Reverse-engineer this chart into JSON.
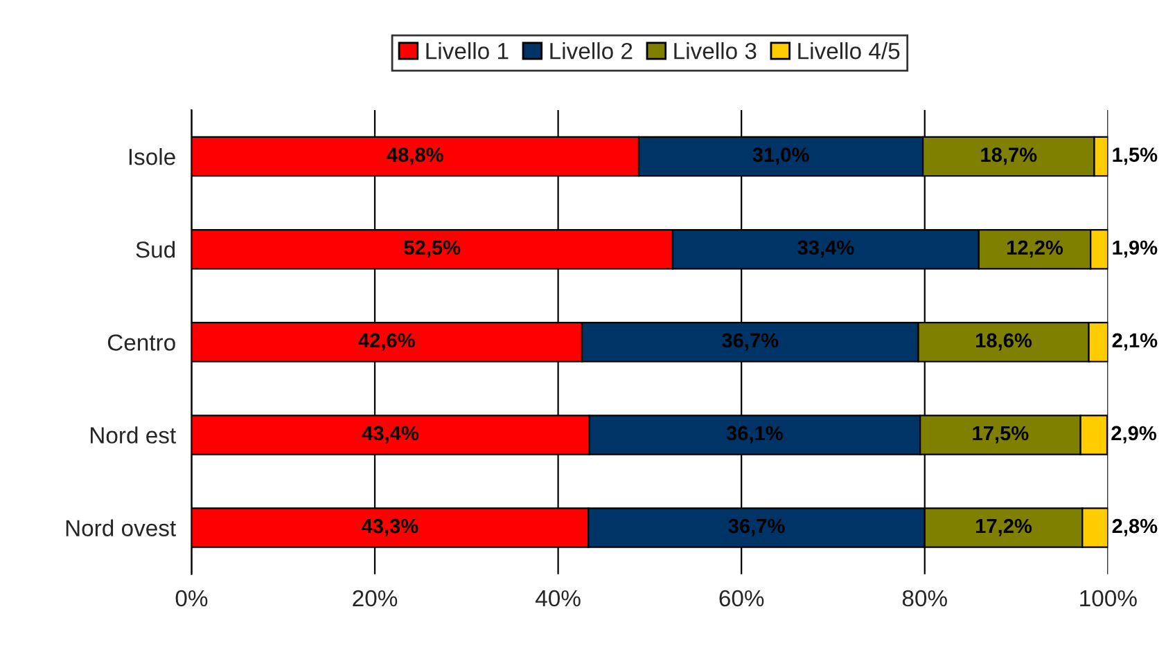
{
  "chart_data": {
    "type": "bar",
    "orientation": "horizontal",
    "stacked": true,
    "categories": [
      "Isole",
      "Sud",
      "Centro",
      "Nord est",
      "Nord ovest"
    ],
    "series": [
      {
        "name": "Livello 1",
        "color": "#ff0000",
        "values": [
          48.8,
          52.5,
          42.6,
          43.4,
          43.3
        ],
        "value_labels": [
          "48,8%",
          "52,5%",
          "42,6%",
          "43,4%",
          "43,3%"
        ]
      },
      {
        "name": "Livello 2",
        "color": "#003366",
        "values": [
          31.0,
          33.4,
          36.7,
          36.1,
          36.7
        ],
        "value_labels": [
          "31,0%",
          "33,4%",
          "36,7%",
          "36,1%",
          "36,7%"
        ]
      },
      {
        "name": "Livello 3",
        "color": "#808000",
        "values": [
          18.7,
          12.2,
          18.6,
          17.5,
          17.2
        ],
        "value_labels": [
          "18,7%",
          "12,2%",
          "18,6%",
          "17,5%",
          "17,2%"
        ]
      },
      {
        "name": "Livello 4/5",
        "color": "#ffcc00",
        "values": [
          1.5,
          1.9,
          2.1,
          2.9,
          2.8
        ],
        "value_labels": [
          "1,5%",
          "1,9%",
          "2,1%",
          "2,9%",
          "2,8%"
        ]
      }
    ],
    "xlim": [
      0,
      100
    ],
    "xticks": [
      {
        "value": 0,
        "label": "0%"
      },
      {
        "value": 20,
        "label": "20%"
      },
      {
        "value": 40,
        "label": "40%"
      },
      {
        "value": 60,
        "label": "60%"
      },
      {
        "value": 80,
        "label": "80%"
      },
      {
        "value": 100,
        "label": "100%"
      }
    ],
    "grid": "x",
    "legend": "top"
  }
}
